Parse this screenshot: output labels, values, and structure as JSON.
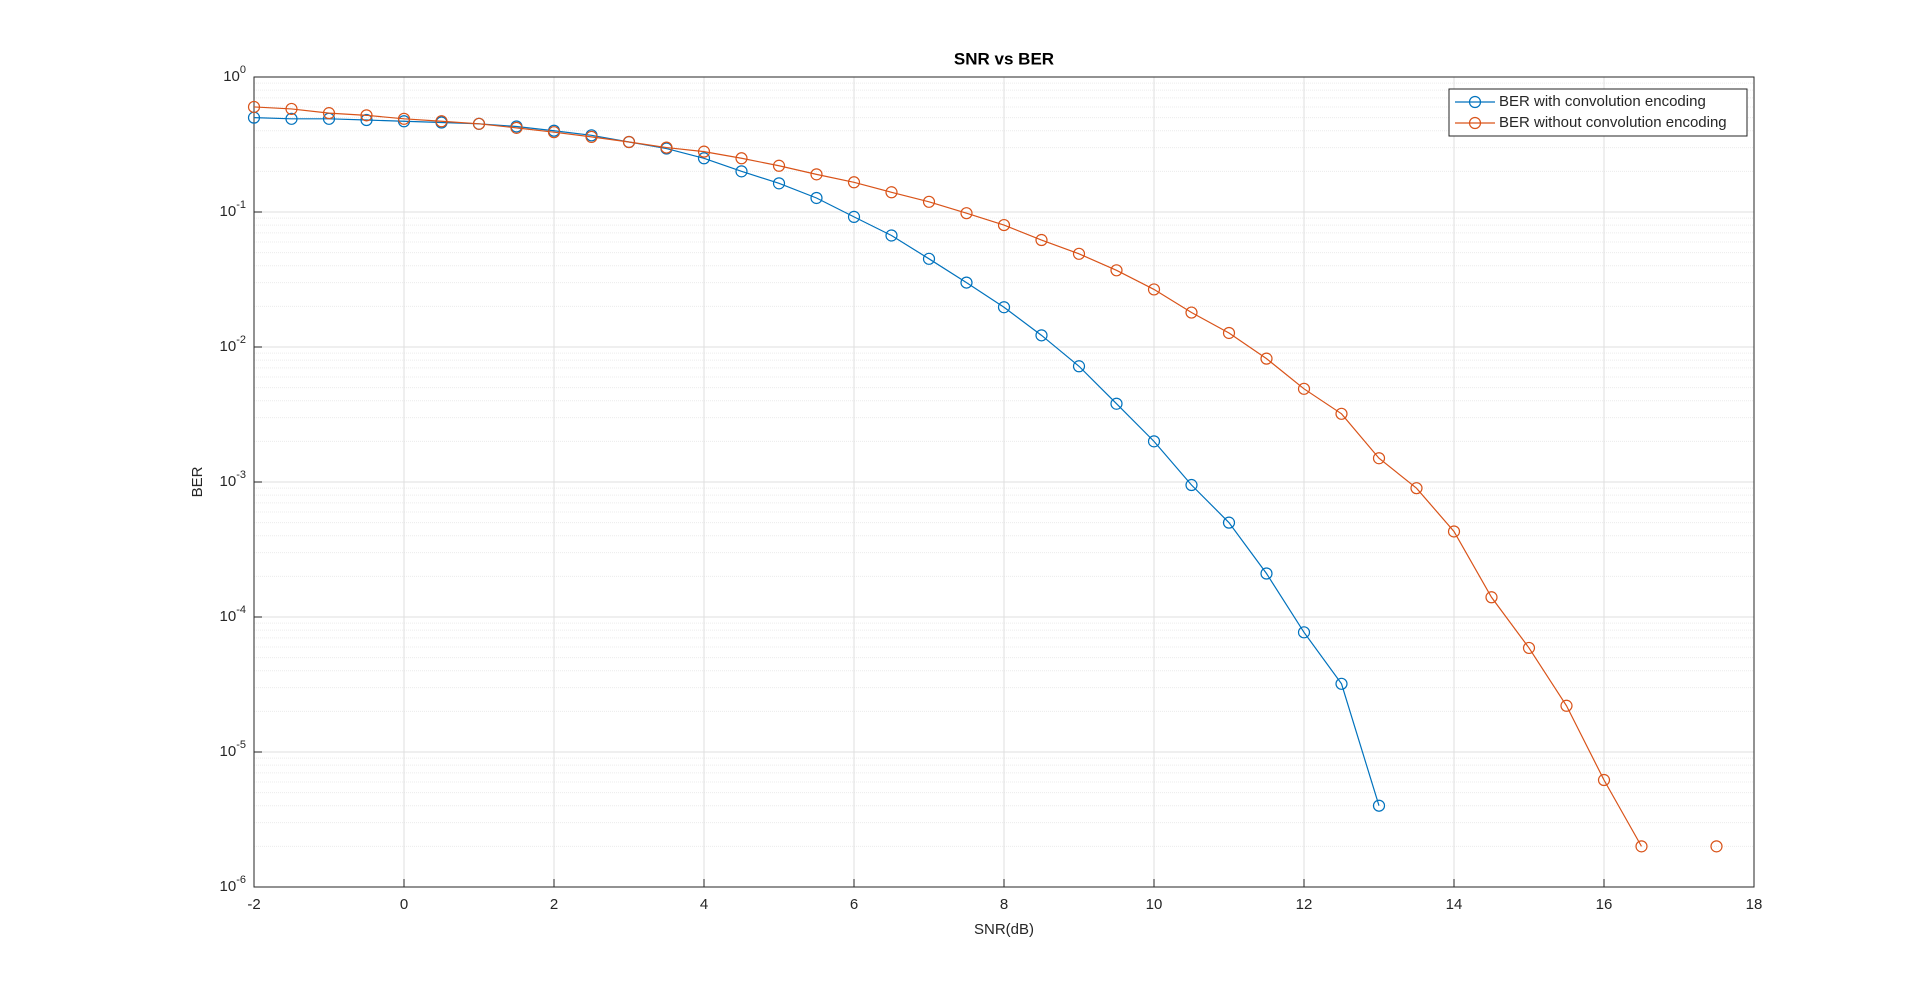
{
  "chart_data": {
    "type": "line",
    "title": "SNR vs BER",
    "x_label": "SNR(dB)",
    "y_label": "BER",
    "log_y": true,
    "grid": true,
    "minor_grid": true,
    "legend": "northeast",
    "xlim": [
      -2,
      18
    ],
    "xticks": [
      -2,
      0,
      2,
      4,
      6,
      8,
      10,
      12,
      14,
      16,
      18
    ],
    "ylim": [
      1e-06,
      1
    ],
    "yticks": [
      {
        "value": 1e-06,
        "label": "10",
        "exponent": "-6"
      },
      {
        "value": 1e-05,
        "label": "10",
        "exponent": "-5"
      },
      {
        "value": 0.0001,
        "label": "10",
        "exponent": "-4"
      },
      {
        "value": 0.001,
        "label": "10",
        "exponent": "-3"
      },
      {
        "value": 0.01,
        "label": "10",
        "exponent": "-2"
      },
      {
        "value": 0.1,
        "label": "10",
        "exponent": "-1"
      },
      {
        "value": 1,
        "label": "10",
        "exponent": "0"
      }
    ],
    "series": [
      {
        "name": "BER with convolution encoding",
        "color": "#0072bd",
        "x": [
          -2,
          -1.5,
          -1,
          -0.5,
          0,
          0.5,
          1,
          1.5,
          2,
          2.5,
          3,
          3.5,
          4,
          4.5,
          5,
          5.5,
          6,
          6.5,
          7,
          7.5,
          8,
          8.5,
          9,
          9.5,
          10,
          10.5,
          11,
          11.5,
          12,
          12.5,
          13
        ],
        "values": [
          0.5,
          0.49,
          0.49,
          0.48,
          0.47,
          0.46,
          0.45,
          0.43,
          0.4,
          0.37,
          0.33,
          0.295,
          0.25,
          0.2,
          0.163,
          0.127,
          0.092,
          0.067,
          0.045,
          0.03,
          0.0197,
          0.0122,
          0.0072,
          0.0038,
          0.002,
          0.00095,
          0.0005,
          0.00021,
          7.7e-05,
          3.2e-05,
          4e-06
        ]
      },
      {
        "name": "BER without convolution encoding",
        "color": "#d95319",
        "x": [
          -2,
          -1.5,
          -1,
          -0.5,
          0,
          0.5,
          1,
          1.5,
          2,
          2.5,
          3,
          3.5,
          4,
          4.5,
          5,
          5.5,
          6,
          6.5,
          7,
          7.5,
          8,
          8.5,
          9,
          9.5,
          10,
          10.5,
          11,
          11.5,
          12,
          12.5,
          13,
          13.5,
          14,
          14.5,
          15,
          15.5,
          16,
          16.5,
          17,
          17.5
        ],
        "values": [
          0.6,
          0.58,
          0.54,
          0.52,
          0.49,
          0.47,
          0.45,
          0.42,
          0.39,
          0.36,
          0.33,
          0.3,
          0.28,
          0.25,
          0.22,
          0.19,
          0.166,
          0.14,
          0.119,
          0.098,
          0.08,
          0.062,
          0.049,
          0.037,
          0.0267,
          0.018,
          0.0127,
          0.0082,
          0.0049,
          0.0032,
          0.0015,
          0.0009,
          0.00043,
          0.00014,
          5.9e-05,
          2.2e-05,
          6.2e-06,
          2e-06,
          null,
          2e-06
        ]
      }
    ]
  }
}
